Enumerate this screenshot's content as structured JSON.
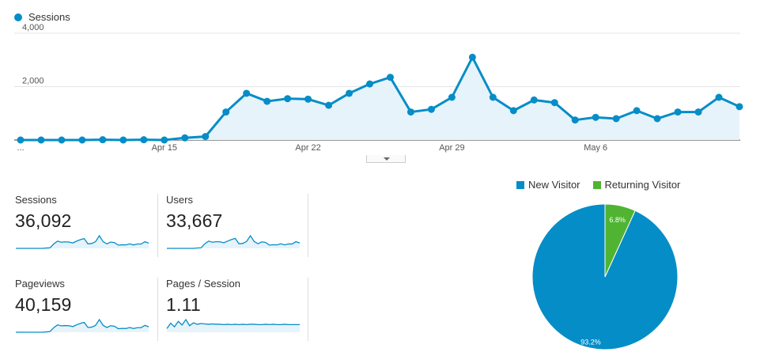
{
  "colors": {
    "series": "#058dc7",
    "fill": "#e6f3fa",
    "new": "#058dc7",
    "returning": "#50b432",
    "grid": "#e5e5e5"
  },
  "main_legend": "Sessions",
  "chart_data": [
    {
      "type": "area",
      "series": [
        {
          "name": "Sessions",
          "values": [
            0,
            0,
            0,
            0,
            10,
            0,
            10,
            0,
            80,
            130,
            1050,
            1750,
            1450,
            1550,
            1530,
            1300,
            1750,
            2100,
            2350,
            1050,
            1150,
            1600,
            3100,
            1600,
            1100,
            1500,
            1400,
            750,
            850,
            800,
            1100,
            800,
            1050,
            1050,
            1600,
            1250
          ]
        }
      ],
      "x_tick_labels": [
        "...",
        "Apr 15",
        "Apr 22",
        "Apr 29",
        "May 6"
      ],
      "x_tick_index": [
        0,
        7,
        14,
        21,
        28
      ],
      "y_tick_labels": [
        "2,000",
        "4,000"
      ],
      "ylim": [
        0,
        4000
      ]
    },
    {
      "type": "pie",
      "labels": [
        "New Visitor",
        "Returning Visitor"
      ],
      "values": [
        93.2,
        6.8
      ],
      "value_labels": [
        "93.2%",
        "6.8%"
      ]
    }
  ],
  "metrics": [
    {
      "label": "Sessions",
      "value": "36,092",
      "spark": [
        0,
        0,
        0,
        0,
        0,
        0,
        0,
        0,
        2,
        3,
        25,
        40,
        34,
        36,
        35,
        30,
        40,
        48,
        54,
        25,
        27,
        37,
        70,
        37,
        25,
        35,
        32,
        18,
        20,
        19,
        25,
        19,
        24,
        24,
        37,
        29
      ]
    },
    {
      "label": "Users",
      "value": "33,667",
      "spark": [
        0,
        0,
        0,
        0,
        0,
        0,
        0,
        0,
        2,
        3,
        24,
        38,
        32,
        35,
        34,
        29,
        38,
        46,
        52,
        24,
        26,
        36,
        66,
        36,
        24,
        34,
        31,
        17,
        19,
        18,
        24,
        18,
        23,
        23,
        35,
        28
      ]
    },
    {
      "label": "Pageviews",
      "value": "40,159",
      "spark": [
        0,
        0,
        0,
        0,
        0,
        0,
        0,
        0,
        2,
        4,
        26,
        42,
        36,
        38,
        37,
        32,
        42,
        50,
        56,
        27,
        29,
        39,
        72,
        39,
        27,
        37,
        34,
        20,
        22,
        21,
        27,
        21,
        26,
        26,
        39,
        31
      ]
    },
    {
      "label": "Pages / Session",
      "value": "1.11",
      "spark": [
        10,
        25,
        15,
        30,
        20,
        35,
        18,
        26,
        22,
        24,
        23,
        22,
        23,
        22,
        22,
        21,
        22,
        21,
        22,
        21,
        22,
        21,
        22,
        22,
        21,
        21,
        22,
        21,
        22,
        21,
        21,
        22,
        21,
        21,
        21,
        21
      ]
    }
  ]
}
